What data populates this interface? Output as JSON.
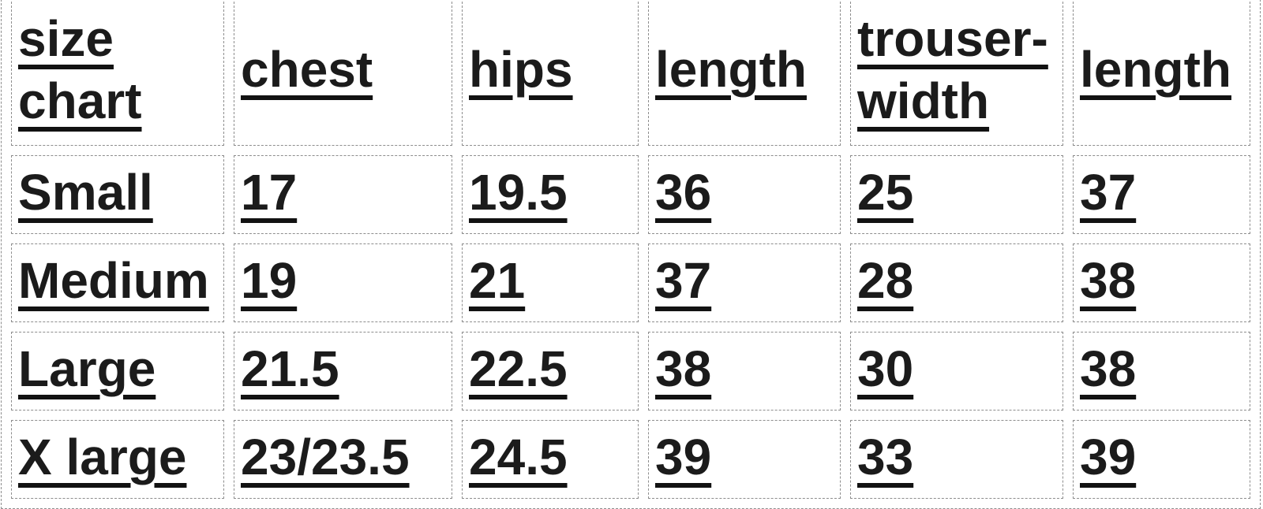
{
  "colors": {
    "background": "#ffffff",
    "gridline_dashed": "#8d8d8d",
    "text": "#1b1b1b",
    "underline": "#121212"
  },
  "table": {
    "title": "size chart",
    "columns": [
      {
        "header": "size chart"
      },
      {
        "header": "chest"
      },
      {
        "header": "hips"
      },
      {
        "header": "length"
      },
      {
        "header": "trouser-width"
      },
      {
        "header": "length"
      }
    ],
    "rows": [
      {
        "size": "Small",
        "values": [
          "17",
          "19.5",
          "36",
          "25",
          "37"
        ]
      },
      {
        "size": "Medium",
        "values": [
          "19",
          "21",
          "37",
          "28",
          "38"
        ]
      },
      {
        "size": "Large",
        "values": [
          "21.5",
          "22.5",
          "38",
          "30",
          "38"
        ]
      },
      {
        "size": "X large",
        "values": [
          "23/23.5",
          "24.5",
          "39",
          "33",
          "39"
        ]
      }
    ]
  }
}
